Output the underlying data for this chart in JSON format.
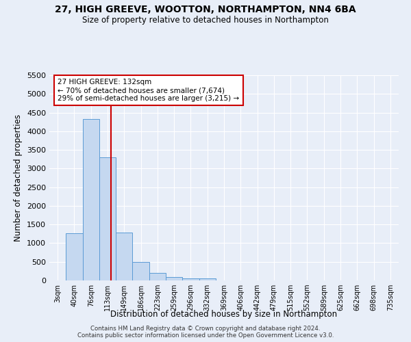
{
  "title": "27, HIGH GREEVE, WOOTTON, NORTHAMPTON, NN4 6BA",
  "subtitle": "Size of property relative to detached houses in Northampton",
  "xlabel": "Distribution of detached houses by size in Northampton",
  "ylabel": "Number of detached properties",
  "footer_line1": "Contains HM Land Registry data © Crown copyright and database right 2024.",
  "footer_line2": "Contains public sector information licensed under the Open Government Licence v3.0.",
  "bar_labels": [
    "3sqm",
    "40sqm",
    "76sqm",
    "113sqm",
    "149sqm",
    "186sqm",
    "223sqm",
    "259sqm",
    "296sqm",
    "332sqm",
    "369sqm",
    "406sqm",
    "442sqm",
    "479sqm",
    "515sqm",
    "552sqm",
    "589sqm",
    "625sqm",
    "662sqm",
    "698sqm",
    "735sqm"
  ],
  "bar_values": [
    0,
    1260,
    4330,
    3300,
    1280,
    490,
    210,
    85,
    55,
    50,
    0,
    0,
    0,
    0,
    0,
    0,
    0,
    0,
    0,
    0,
    0
  ],
  "bar_color": "#c5d8f0",
  "bar_edge_color": "#5b9bd5",
  "property_label": "27 HIGH GREEVE: 132sqm",
  "annotation_line1": "← 70% of detached houses are smaller (7,674)",
  "annotation_line2": "29% of semi-detached houses are larger (3,215) →",
  "ylim": [
    0,
    5500
  ],
  "yticks": [
    0,
    500,
    1000,
    1500,
    2000,
    2500,
    3000,
    3500,
    4000,
    4500,
    5000,
    5500
  ],
  "background_color": "#e8eef8",
  "plot_bg_color": "#e8eef8",
  "grid_color": "#ffffff",
  "annotation_box_color": "#ffffff",
  "annotation_box_edge": "#cc0000",
  "red_line_color": "#cc0000",
  "red_line_x": 3.19
}
